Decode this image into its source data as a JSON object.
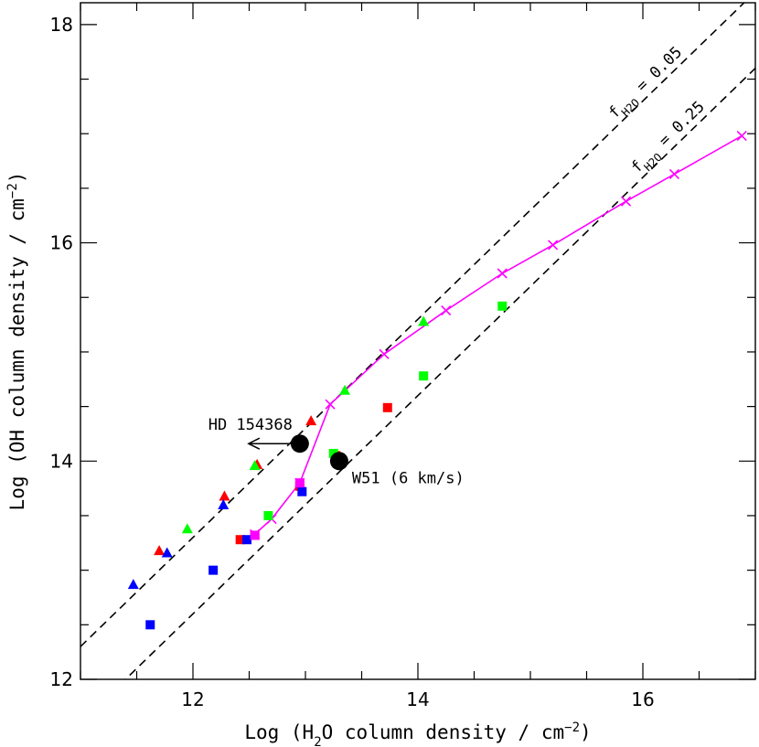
{
  "chart_data": {
    "type": "scatter",
    "xlabel": "Log (H2O column density / cm-2)",
    "xlabel_parts": {
      "prefix": "Log (H",
      "sub": "2",
      "mid": "O column density / cm",
      "sup": "−2",
      "suffix": ")"
    },
    "ylabel_parts": {
      "prefix": "Log (OH column density / cm",
      "sup": "−2",
      "suffix": ")"
    },
    "xlim": [
      11.0,
      17.0
    ],
    "ylim": [
      12.0,
      18.2
    ],
    "x_major_ticks": [
      12,
      14,
      16
    ],
    "x_tick_labels": [
      "12",
      "14",
      "16"
    ],
    "y_major_ticks": [
      12,
      14,
      16,
      18
    ],
    "y_tick_labels": [
      "12",
      "14",
      "16",
      "18"
    ],
    "grid": false,
    "ratio_lines": [
      {
        "label_prefix": "f",
        "label_sub": "H2O",
        "label_suffix": " = 0.05",
        "intercept": 1.3,
        "style": "dashed",
        "color": "#000000"
      },
      {
        "label_prefix": "f",
        "label_sub": "H2O",
        "label_suffix": " = 0.25",
        "intercept": 0.6,
        "style": "dashed",
        "color": "#000000"
      }
    ],
    "model_curve": {
      "color": "#ff00ff",
      "marker": "x",
      "points": [
        [
          12.55,
          13.33
        ],
        [
          12.7,
          13.47
        ],
        [
          12.95,
          13.8
        ],
        [
          13.22,
          14.52
        ],
        [
          13.7,
          14.98
        ],
        [
          14.25,
          15.38
        ],
        [
          14.75,
          15.72
        ],
        [
          15.2,
          15.98
        ],
        [
          15.85,
          16.38
        ],
        [
          16.28,
          16.63
        ],
        [
          16.88,
          16.98
        ]
      ]
    },
    "series": [
      {
        "name": "",
        "color": "#ff0000",
        "marker": "triangle",
        "points": [
          [
            11.7,
            13.18
          ],
          [
            12.28,
            13.68
          ],
          [
            12.57,
            13.97
          ],
          [
            13.05,
            14.37
          ]
        ]
      },
      {
        "name": "",
        "color": "#00ff00",
        "marker": "triangle",
        "points": [
          [
            11.95,
            13.38
          ],
          [
            12.55,
            13.96
          ],
          [
            13.35,
            14.65
          ],
          [
            14.05,
            15.28
          ]
        ]
      },
      {
        "name": "",
        "color": "#0000ff",
        "marker": "triangle",
        "points": [
          [
            11.47,
            12.87
          ],
          [
            11.77,
            13.16
          ],
          [
            12.27,
            13.6
          ]
        ]
      },
      {
        "name": "",
        "color": "#ff0000",
        "marker": "square",
        "points": [
          [
            12.42,
            13.28
          ],
          [
            12.55,
            13.32
          ],
          [
            12.95,
            13.77
          ],
          [
            13.27,
            14.05
          ],
          [
            13.73,
            14.49
          ]
        ]
      },
      {
        "name": "",
        "color": "#00ff00",
        "marker": "square",
        "points": [
          [
            12.67,
            13.5
          ],
          [
            13.25,
            14.07
          ],
          [
            14.05,
            14.78
          ],
          [
            14.75,
            15.42
          ]
        ]
      },
      {
        "name": "",
        "color": "#0000ff",
        "marker": "square",
        "points": [
          [
            11.62,
            12.5
          ],
          [
            12.18,
            13.0
          ],
          [
            12.48,
            13.28
          ],
          [
            12.97,
            13.72
          ]
        ]
      },
      {
        "name": "",
        "color": "#ff00ff",
        "marker": "square",
        "points": [
          [
            12.55,
            13.32
          ],
          [
            12.95,
            13.8
          ]
        ]
      }
    ],
    "observations": [
      {
        "label": "HD 154368",
        "x": 12.95,
        "y": 14.16,
        "upper_limit_arrow": true
      },
      {
        "label": "W51 (6 km/s)",
        "x": 13.3,
        "y": 14.0,
        "upper_limit_arrow": false
      }
    ]
  }
}
